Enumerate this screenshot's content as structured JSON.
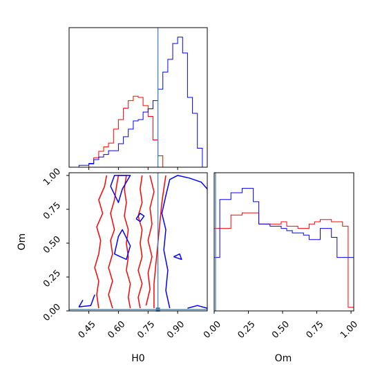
{
  "chart_data": {
    "type": "corner",
    "parameters": [
      "H0",
      "Om"
    ],
    "truths": {
      "H0": 0.8,
      "Om": 0.01
    },
    "truth_color": "#4682b4",
    "series": [
      {
        "color": "#ff0000",
        "hist_H0_centers_from": 0.21,
        "hist_Om_centers_from": 0.0
      },
      {
        "color": "#0000ff"
      }
    ],
    "panels": [
      {
        "id": "hist-H0",
        "type": "histogram",
        "x_param": "H0",
        "xlim": [
          0.35,
          1.05
        ],
        "bins": [
          0.35,
          0.375,
          0.4,
          0.425,
          0.45,
          0.475,
          0.5,
          0.525,
          0.55,
          0.575,
          0.6,
          0.625,
          0.65,
          0.675,
          0.7,
          0.725,
          0.75,
          0.775,
          0.8,
          0.825,
          0.85,
          0.875,
          0.9,
          0.925,
          0.95,
          0.975,
          1.0,
          1.025,
          1.05
        ],
        "series": [
          {
            "name": "",
            "color": "#ff0000",
            "counts": [
              0,
              0,
              0,
              0,
              0.5,
              1.5,
              2.5,
              3.2,
              3.8,
              6.0,
              7.5,
              9.3,
              10.5,
              11.2,
              11.0,
              9.7,
              8.0,
              4.3,
              1.8,
              0,
              0,
              0,
              0,
              0,
              0,
              0,
              0,
              0
            ]
          },
          {
            "name": "",
            "color": "#0000ff",
            "counts": [
              0,
              0,
              0.3,
              0.3,
              0.6,
              1.2,
              1.6,
              2.0,
              2.6,
              2.6,
              3.7,
              4.8,
              6.0,
              7.3,
              7.5,
              8.7,
              9.2,
              10.5,
              12.3,
              15.0,
              17.0,
              19.5,
              20.5,
              18.0,
              11.0,
              8.5,
              3.0,
              0
            ]
          }
        ]
      },
      {
        "id": "hist-Om",
        "type": "histogram",
        "x_param": "Om",
        "xlim": [
          0.0,
          1.02
        ],
        "bins": [
          0.0,
          0.0408,
          0.0816,
          0.1224,
          0.1632,
          0.204,
          0.2448,
          0.2856,
          0.3264,
          0.3672,
          0.408,
          0.4488,
          0.4896,
          0.5304,
          0.5712,
          0.612,
          0.6528,
          0.6936,
          0.7344,
          0.7752,
          0.816,
          0.8568,
          0.8976,
          0.9384,
          0.9792,
          1.02
        ],
        "series": [
          {
            "name": "",
            "color": "#ff0000",
            "counts": [
              18.5,
              18.5,
              18.5,
              21.5,
              21.5,
              22.0,
              22.0,
              22.0,
              19.5,
              19.5,
              19.5,
              19.5,
              20.0,
              19.0,
              19.0,
              18.5,
              18.5,
              19.5,
              20.0,
              20.5,
              20.5,
              20.0,
              20.0,
              19.0,
              0.8
            ]
          },
          {
            "name": "",
            "color": "#0000ff",
            "counts": [
              12.0,
              25.0,
              25.0,
              26.5,
              26.5,
              27.5,
              27.5,
              24.5,
              19.5,
              19.5,
              19.0,
              19.0,
              18.5,
              18.0,
              17.5,
              17.5,
              17.0,
              16.0,
              16.0,
              18.5,
              18.5,
              16.5,
              12.0,
              12.0,
              12.0
            ]
          }
        ]
      },
      {
        "id": "contour-H0-Om",
        "type": "contour",
        "x_param": "H0",
        "y_param": "Om",
        "xlim": [
          0.35,
          1.05
        ],
        "ylim": [
          0.0,
          1.02
        ],
        "x_ticks": [
          0.45,
          0.6,
          0.75,
          0.9
        ],
        "x_tick_labels": [
          "0.45",
          "0.60",
          "0.75",
          "0.90"
        ],
        "y_ticks": [
          0.0,
          0.25,
          0.5,
          0.75,
          1.0
        ],
        "y_tick_labels": [
          "0.00",
          "0.25",
          "0.50",
          "0.75",
          "1.00"
        ],
        "series": [
          {
            "name": "",
            "color": "#ff0000",
            "contours": [
              [
                [
                  0.57,
                  0.02
                ],
                [
                  0.55,
                  0.12
                ],
                [
                  0.57,
                  0.22
                ],
                [
                  0.55,
                  0.32
                ],
                [
                  0.57,
                  0.42
                ],
                [
                  0.56,
                  0.52
                ],
                [
                  0.58,
                  0.6
                ],
                [
                  0.56,
                  0.72
                ],
                [
                  0.58,
                  0.82
                ],
                [
                  0.59,
                  0.92
                ],
                [
                  0.6,
                  1.0
                ],
                [
                  0.64,
                  1.0
                ],
                [
                  0.63,
                  0.9
                ],
                [
                  0.64,
                  0.8
                ],
                [
                  0.63,
                  0.7
                ],
                [
                  0.65,
                  0.6
                ],
                [
                  0.64,
                  0.5
                ],
                [
                  0.65,
                  0.4
                ],
                [
                  0.64,
                  0.3
                ],
                [
                  0.66,
                  0.2
                ],
                [
                  0.65,
                  0.1
                ],
                [
                  0.66,
                  0.02
                ]
              ],
              [
                [
                  0.5,
                  0.02
                ],
                [
                  0.49,
                  0.12
                ],
                [
                  0.5,
                  0.22
                ],
                [
                  0.48,
                  0.32
                ],
                [
                  0.5,
                  0.42
                ],
                [
                  0.51,
                  0.52
                ],
                [
                  0.49,
                  0.62
                ],
                [
                  0.52,
                  0.72
                ],
                [
                  0.5,
                  0.82
                ],
                [
                  0.53,
                  0.92
                ],
                [
                  0.54,
                  1.0
                ]
              ],
              [
                [
                  0.72,
                  1.0
                ],
                [
                  0.71,
                  0.9
                ],
                [
                  0.72,
                  0.8
                ],
                [
                  0.7,
                  0.7
                ],
                [
                  0.72,
                  0.6
                ],
                [
                  0.71,
                  0.5
                ],
                [
                  0.72,
                  0.4
                ],
                [
                  0.7,
                  0.3
                ],
                [
                  0.72,
                  0.2
                ],
                [
                  0.7,
                  0.1
                ],
                [
                  0.71,
                  0.02
                ]
              ],
              [
                [
                  0.76,
                  1.0
                ],
                [
                  0.78,
                  0.88
                ],
                [
                  0.76,
                  0.76
                ],
                [
                  0.77,
                  0.64
                ],
                [
                  0.75,
                  0.52
                ],
                [
                  0.77,
                  0.4
                ],
                [
                  0.75,
                  0.28
                ],
                [
                  0.76,
                  0.16
                ],
                [
                  0.74,
                  0.04
                ]
              ],
              [
                [
                  0.84,
                  1.0
                ],
                [
                  0.83,
                  0.9
                ],
                [
                  0.82,
                  0.8
                ],
                [
                  0.81,
                  0.65
                ],
                [
                  0.8,
                  0.5
                ],
                [
                  0.79,
                  0.35
                ],
                [
                  0.78,
                  0.2
                ],
                [
                  0.78,
                  0.02
                ]
              ]
            ]
          },
          {
            "name": "",
            "color": "#0000ff",
            "contours": [
              [
                [
                  0.86,
                  0.02
                ],
                [
                  0.84,
                  0.15
                ],
                [
                  0.85,
                  0.3
                ],
                [
                  0.83,
                  0.45
                ],
                [
                  0.84,
                  0.6
                ],
                [
                  0.82,
                  0.72
                ],
                [
                  0.84,
                  0.85
                ],
                [
                  0.86,
                  0.97
                ],
                [
                  0.9,
                  1.0
                ],
                [
                  0.96,
                  0.98
                ],
                [
                  1.02,
                  0.95
                ],
                [
                  1.05,
                  0.9
                ]
              ],
              [
                [
                  1.05,
                  0.02
                ],
                [
                  1.0,
                  0.04
                ],
                [
                  0.95,
                  0.02
                ]
              ],
              [
                [
                  0.48,
                  0.12
                ],
                [
                  0.46,
                  0.04
                ],
                [
                  0.4,
                  0.03
                ],
                [
                  0.42,
                  0.08
                ]
              ],
              [
                [
                  0.56,
                  0.92
                ],
                [
                  0.58,
                  1.0
                ],
                [
                  0.66,
                  1.0
                ],
                [
                  0.62,
                  0.9
                ],
                [
                  0.6,
                  0.8
                ],
                [
                  0.56,
                  0.92
                ]
              ],
              [
                [
                  0.6,
                  0.55
                ],
                [
                  0.58,
                  0.42
                ],
                [
                  0.64,
                  0.38
                ],
                [
                  0.66,
                  0.48
                ],
                [
                  0.62,
                  0.6
                ],
                [
                  0.6,
                  0.55
                ]
              ],
              [
                [
                  0.88,
                  0.4
                ],
                [
                  0.92,
                  0.38
                ],
                [
                  0.91,
                  0.42
                ],
                [
                  0.88,
                  0.4
                ]
              ],
              [
                [
                  0.69,
                  0.68
                ],
                [
                  0.71,
                  0.72
                ],
                [
                  0.73,
                  0.7
                ],
                [
                  0.71,
                  0.66
                ],
                [
                  0.69,
                  0.68
                ]
              ]
            ]
          }
        ]
      },
      {
        "id": "hist-Om-axes",
        "type": "axes",
        "x_ticks": [
          0.0,
          0.25,
          0.5,
          0.75,
          1.0
        ],
        "x_tick_labels": [
          "0.00",
          "0.25",
          "0.50",
          "0.75",
          "1.00"
        ]
      }
    ],
    "xlabel": "H0",
    "ylabel": "Om",
    "xlabel_2": "Om"
  }
}
